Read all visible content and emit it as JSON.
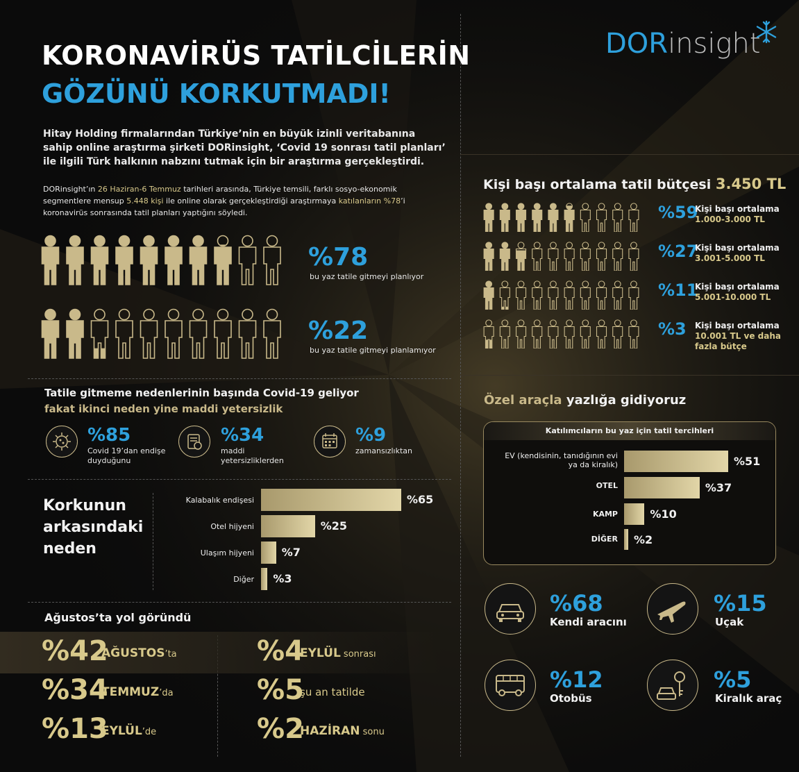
{
  "header": {
    "title_line1": "KORONAVİRÜS TATİLCİLERİN",
    "title_line2": "GÖZÜNÜ KORKUTMADI!",
    "logo_part1": "DOR",
    "logo_part2": "insight"
  },
  "intro": {
    "paragraph1": "Hitay Holding firmalarından Türkiye’nin en büyük izinli veritabanına sahip online araştırma şirketi DORinsight, ‘Covid 19 sonrası tatil planları’ ile ilgili Türk halkının nabzını tutmak için bir araştırma gerçekleştirdi.",
    "p2_a": "DORinsight’ın ",
    "p2_b": "26 Haziran-6 Temmuz",
    "p2_c": " tarihleri arasında, Türkiye temsili, farklı sosyo-ekonomik segmentlere mensup ",
    "p2_d": "5.448 kişi",
    "p2_e": " ile online olarak gerçekleştirdiği araştırmaya ",
    "p2_f": "katılanların %78",
    "p2_g": "’i koronavirüs sonrasında tatil planları yaptığını söyledi."
  },
  "plans": {
    "going_pct": "%78",
    "going_label": "bu yaz tatile gitmeyi planlıyor",
    "going_value": 78,
    "notgoing_pct": "%22",
    "notgoing_label": "bu yaz tatile gitmeyi planlamıyor",
    "notgoing_value": 22
  },
  "budget": {
    "title": "Kişi başı ortalama tatil bütçesi",
    "amount": "3.450 TL",
    "rows": [
      {
        "pct": "%59",
        "label1": "Kişi başı ortalama",
        "label2": "1.000-3.000 TL",
        "value": 59
      },
      {
        "pct": "%27",
        "label1": "Kişi başı ortalama",
        "label2": "3.001-5.000 TL",
        "value": 27
      },
      {
        "pct": "%11",
        "label1": "Kişi başı ortalama",
        "label2": "5.001-10.000 TL",
        "value": 11
      },
      {
        "pct": "%3",
        "label1": "Kişi başı ortalama",
        "label2": "10.001 TL ve daha fazla bütçe",
        "value": 3
      }
    ]
  },
  "reasons": {
    "title": "Tatile gitmeme nedenlerinin başında Covid-19 geliyor",
    "subtitle": "fakat ikinci neden yine maddi yetersizlik",
    "items": [
      {
        "pct": "%85",
        "label": "Covid 19’dan endişe duyduğunu",
        "icon": "virus-icon"
      },
      {
        "pct": "%34",
        "label": "maddi yetersizliklerden",
        "icon": "money-icon"
      },
      {
        "pct": "%9",
        "label": "zamansızlıktan",
        "icon": "calendar-icon"
      }
    ]
  },
  "fear": {
    "title_line1": "Korkunun",
    "title_line2": "arkasındaki",
    "title_line3": "neden"
  },
  "transport": {
    "title_gold": "Özel araçla",
    "title_rest": "yazlığa gidiyoruz",
    "panel_title": "Katılımcıların bu yaz için tatil tercihleri",
    "items": [
      {
        "pct": "%68",
        "label": "Kendi aracını",
        "icon": "car-icon"
      },
      {
        "pct": "%15",
        "label": "Uçak",
        "icon": "plane-icon"
      },
      {
        "pct": "%12",
        "label": "Otobüs",
        "icon": "bus-icon"
      },
      {
        "pct": "%5",
        "label": "Kiralık araç",
        "icon": "rental-car-icon"
      }
    ]
  },
  "timing": {
    "title": "Ağustos’ta yol göründü",
    "left": [
      {
        "pct": "%42",
        "name": "AĞUSTOS",
        "suffix": "’ta"
      },
      {
        "pct": "%34",
        "name": "TEMMUZ",
        "suffix": "’da"
      },
      {
        "pct": "%13",
        "name": "EYLÜL",
        "suffix": "’de"
      }
    ],
    "right": [
      {
        "pct": "%4",
        "name": "EYLÜL",
        "suffix": " sonrası"
      },
      {
        "pct": "%5",
        "name": "",
        "suffix": "şu an tatilde"
      },
      {
        "pct": "%2",
        "name": "HAZİRAN",
        "suffix": " sonu"
      }
    ]
  },
  "colors": {
    "accent_blue": "#2ea0dc",
    "gold": "#d8c98b",
    "bar_gold": "#c9b98a",
    "background": "#0b0b0b"
  },
  "chart_data": [
    {
      "type": "bar",
      "title": "",
      "categories": [
        "Kalabalık endişesi",
        "Otel hijyeni",
        "Ulaşım hijyeni",
        "Diğer"
      ],
      "values": [
        65,
        25,
        7,
        3
      ],
      "value_labels": [
        "%65",
        "%25",
        "%7",
        "%3"
      ],
      "xlim": [
        0,
        65
      ]
    },
    {
      "type": "bar",
      "title": "Katılımcıların bu yaz için tatil tercihleri",
      "categories": [
        "EV (kendisinin, tanıdığının evi ya da kiralık)",
        "OTEL",
        "KAMP",
        "DİĞER"
      ],
      "values": [
        51,
        37,
        10,
        2
      ],
      "value_labels": [
        "%51",
        "%37",
        "%10",
        "%2"
      ],
      "xlim": [
        0,
        51
      ]
    }
  ]
}
